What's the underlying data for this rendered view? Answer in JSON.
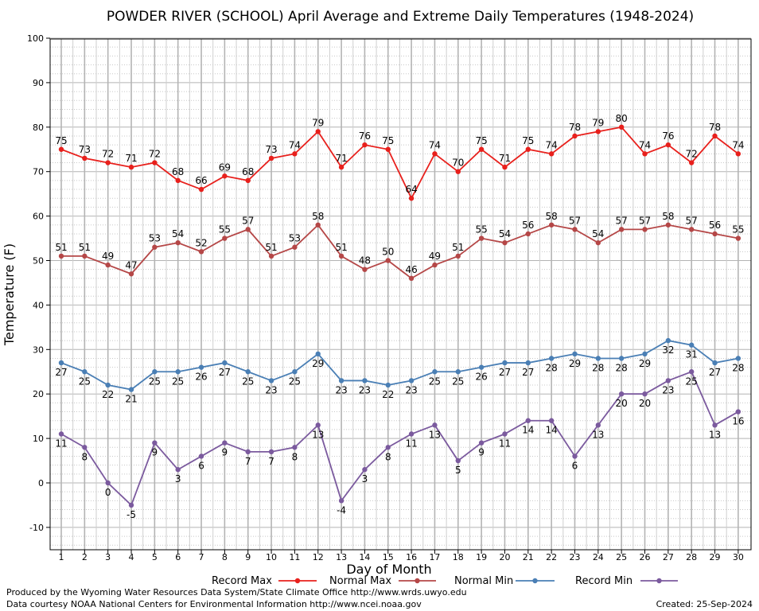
{
  "chart_data": {
    "type": "line",
    "title": "POWDER RIVER (SCHOOL) April Average and Extreme Daily Temperatures (1948-2024)",
    "xlabel": "Day of Month",
    "ylabel": "Temperature (F)",
    "xlim": [
      1,
      30
    ],
    "ylim": [
      -15,
      100
    ],
    "yticks": [
      -10,
      0,
      10,
      20,
      30,
      40,
      50,
      60,
      70,
      80,
      90,
      100
    ],
    "x": [
      1,
      2,
      3,
      4,
      5,
      6,
      7,
      8,
      9,
      10,
      11,
      12,
      13,
      14,
      15,
      16,
      17,
      18,
      19,
      20,
      21,
      22,
      23,
      24,
      25,
      26,
      27,
      28,
      29,
      30
    ],
    "grid": true,
    "legend_position": "bottom",
    "series": [
      {
        "name": "Record Max",
        "color": "#e8201c",
        "label_pos": "above",
        "values": [
          75,
          73,
          72,
          71,
          72,
          68,
          66,
          69,
          68,
          73,
          74,
          79,
          71,
          76,
          75,
          64,
          74,
          70,
          75,
          71,
          75,
          74,
          78,
          79,
          80,
          74,
          76,
          72,
          78,
          74
        ]
      },
      {
        "name": "Normal Max",
        "color": "#b54747",
        "label_pos": "above",
        "values": [
          51,
          51,
          49,
          47,
          53,
          54,
          52,
          55,
          57,
          51,
          53,
          58,
          51,
          48,
          50,
          46,
          49,
          51,
          55,
          54,
          56,
          58,
          57,
          54,
          57,
          57,
          58,
          57,
          56,
          55
        ]
      },
      {
        "name": "Normal Min",
        "color": "#4a7fb5",
        "label_pos": "below",
        "values": [
          27,
          25,
          22,
          21,
          25,
          25,
          26,
          27,
          25,
          23,
          25,
          29,
          23,
          23,
          22,
          23,
          25,
          25,
          26,
          27,
          27,
          28,
          29,
          28,
          28,
          29,
          32,
          31,
          27,
          28
        ]
      },
      {
        "name": "Record Min",
        "color": "#7b5a9e",
        "label_pos": "below",
        "values": [
          11,
          8,
          0,
          -5,
          9,
          3,
          6,
          9,
          7,
          7,
          8,
          13,
          -4,
          3,
          8,
          11,
          13,
          5,
          9,
          11,
          14,
          14,
          6,
          13,
          20,
          20,
          23,
          25,
          13,
          16
        ]
      }
    ]
  },
  "footer": {
    "line1": "Produced by the Wyoming Water Resources Data System/State Climate Office http://www.wrds.uwyo.edu",
    "line2": "Data courtesy NOAA National Centers for Environmental Information http://www.ncei.noaa.gov",
    "created": "Created:  25-Sep-2024"
  }
}
